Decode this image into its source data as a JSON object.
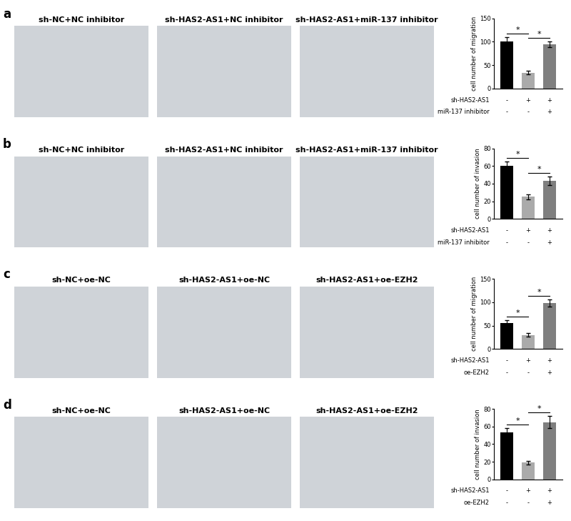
{
  "figure": {
    "panels": [
      {
        "label": "a",
        "images": [
          "sh-NC+NC inhibitor",
          "sh-HAS2-AS1+NC inhibitor",
          "sh-HAS2-AS1+miR-137 inhibitor"
        ]
      },
      {
        "label": "b",
        "images": [
          "sh-NC+NC inhibitor",
          "sh-HAS2-AS1+NC inhibitor",
          "sh-HAS2-AS1+miR-137 inhibitor"
        ]
      },
      {
        "label": "c",
        "images": [
          "sh-NC+oe-NC",
          "sh-HAS2-AS1+oe-NC",
          "sh-HAS2-AS1+oe-EZH2"
        ]
      },
      {
        "label": "d",
        "images": [
          "sh-NC+oe-NC",
          "sh-HAS2-AS1+oe-NC",
          "sh-HAS2-AS1+oe-EZH2"
        ]
      }
    ]
  },
  "chart_data": [
    {
      "type": "bar",
      "y_label": "cell number of migration",
      "categories": [
        null,
        null,
        null
      ],
      "values": [
        101,
        34,
        94
      ],
      "errors": [
        8,
        4,
        6
      ],
      "colors": [
        "#000000",
        "#aaaaaa",
        "#7f7f7f"
      ],
      "ylim": [
        0,
        150
      ],
      "yticks": [
        0,
        50,
        100,
        150
      ],
      "conditions": [
        {
          "name": "sh-HAS2-AS1",
          "marks": [
            "-",
            "+",
            "+"
          ]
        },
        {
          "name": "miR-137 inhibitor",
          "marks": [
            "-",
            "-",
            "+"
          ]
        }
      ],
      "annotations": [
        {
          "text": "*",
          "between": [
            0,
            1
          ]
        },
        {
          "text": "*",
          "between": [
            1,
            2
          ]
        }
      ]
    },
    {
      "type": "bar",
      "y_label": "cell number of invasion",
      "categories": [
        null,
        null,
        null
      ],
      "values": [
        60,
        25,
        43
      ],
      "errors": [
        5,
        3,
        5
      ],
      "colors": [
        "#000000",
        "#aaaaaa",
        "#7f7f7f"
      ],
      "ylim": [
        0,
        80
      ],
      "yticks": [
        0,
        20,
        40,
        60,
        80
      ],
      "conditions": [
        {
          "name": "sh-HAS2-AS1",
          "marks": [
            "-",
            "+",
            "+"
          ]
        },
        {
          "name": "miR-137 inhibitor",
          "marks": [
            "-",
            "-",
            "+"
          ]
        }
      ],
      "annotations": [
        {
          "text": "*",
          "between": [
            0,
            1
          ]
        },
        {
          "text": "*",
          "between": [
            1,
            2
          ]
        }
      ]
    },
    {
      "type": "bar",
      "y_label": "cell number of migration",
      "categories": [
        null,
        null,
        null
      ],
      "values": [
        55,
        30,
        98
      ],
      "errors": [
        7,
        4,
        8
      ],
      "colors": [
        "#000000",
        "#aaaaaa",
        "#7f7f7f"
      ],
      "ylim": [
        0,
        150
      ],
      "yticks": [
        0,
        50,
        100,
        150
      ],
      "conditions": [
        {
          "name": "sh-HAS2-AS1",
          "marks": [
            "-",
            "+",
            "+"
          ]
        },
        {
          "name": "oe-EZH2",
          "marks": [
            "-",
            "-",
            "+"
          ]
        }
      ],
      "annotations": [
        {
          "text": "*",
          "between": [
            0,
            1
          ]
        },
        {
          "text": "*",
          "between": [
            1,
            2
          ]
        }
      ]
    },
    {
      "type": "bar",
      "y_label": "cell number of invasion",
      "categories": [
        null,
        null,
        null
      ],
      "values": [
        53,
        19,
        65
      ],
      "errors": [
        5,
        2,
        7
      ],
      "colors": [
        "#000000",
        "#aaaaaa",
        "#7f7f7f"
      ],
      "ylim": [
        0,
        80
      ],
      "yticks": [
        0,
        20,
        40,
        60,
        80
      ],
      "conditions": [
        {
          "name": "sh-HAS2-AS1",
          "marks": [
            "-",
            "+",
            "+"
          ]
        },
        {
          "name": "oe-EZH2",
          "marks": [
            "-",
            "-",
            "+"
          ]
        }
      ],
      "annotations": [
        {
          "text": "*",
          "between": [
            0,
            1
          ]
        },
        {
          "text": "*",
          "between": [
            1,
            2
          ]
        }
      ]
    }
  ]
}
